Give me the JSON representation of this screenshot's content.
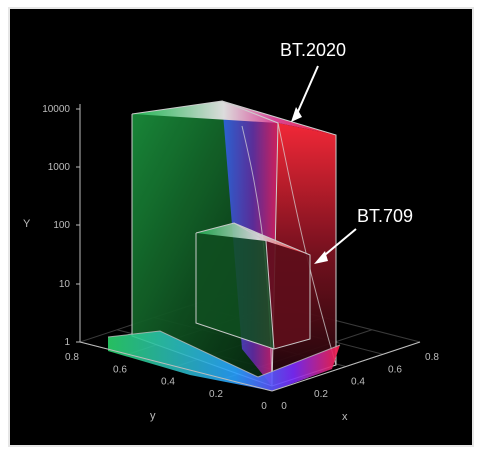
{
  "chart_data": {
    "type": "3d-volume",
    "ylabel": "Y",
    "xlabel": "x",
    "zlabel": "y",
    "y_log_ticks": [
      "1",
      "10",
      "100",
      "1000",
      "10000"
    ],
    "x_ticks": [
      "0",
      "0.2",
      "0.4",
      "0.6",
      "0.8"
    ],
    "y_ticks": [
      "0",
      "0.2",
      "0.4",
      "0.6",
      "0.8"
    ],
    "annotations": [
      {
        "text": "BT.2020"
      },
      {
        "text": "BT.709"
      }
    ],
    "grid": true
  },
  "colors": {
    "background": "#000000",
    "axis": "#bdbdbd",
    "green": "#22c45a",
    "red": "#e8253a",
    "blue": "#2a62ff",
    "white": "#ffffff"
  }
}
